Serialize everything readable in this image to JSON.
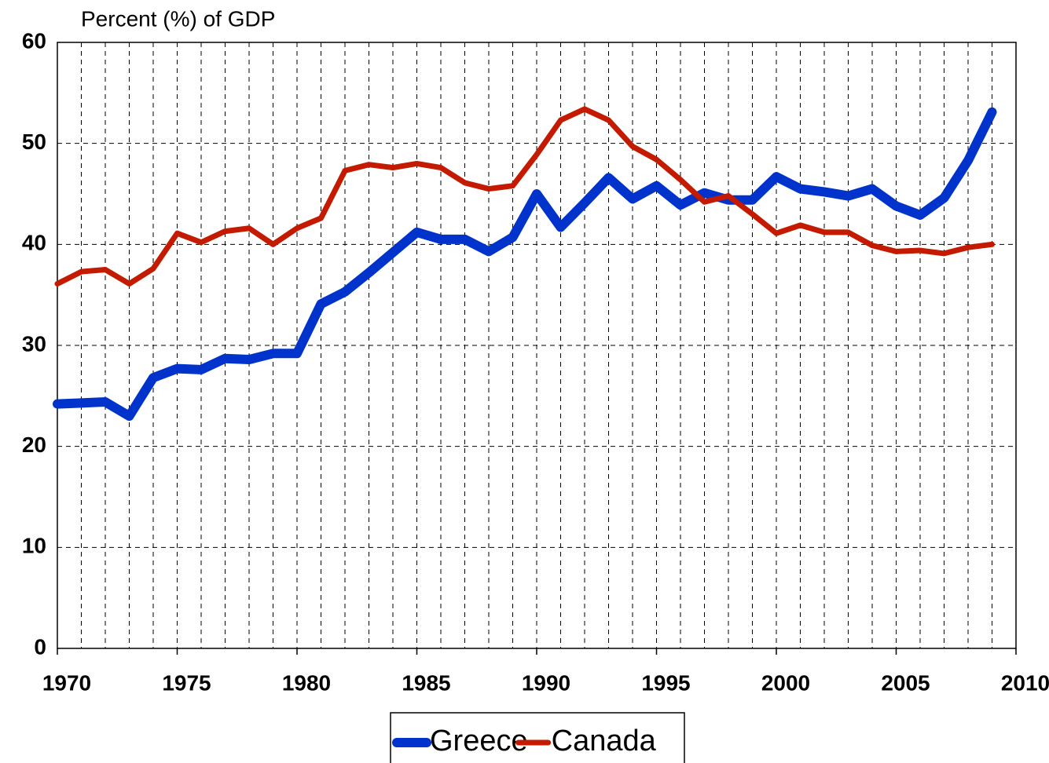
{
  "chart_data": {
    "type": "line",
    "y_label": "Percent (%) of GDP",
    "x": [
      1970,
      1971,
      1972,
      1973,
      1974,
      1975,
      1976,
      1977,
      1978,
      1979,
      1980,
      1981,
      1982,
      1983,
      1984,
      1985,
      1986,
      1987,
      1988,
      1989,
      1990,
      1991,
      1992,
      1993,
      1994,
      1995,
      1996,
      1997,
      1998,
      1999,
      2000,
      2001,
      2002,
      2003,
      2004,
      2005,
      2006,
      2007,
      2008,
      2009
    ],
    "series": [
      {
        "name": "Greece",
        "color": "#0033cc",
        "values": [
          24.2,
          24.3,
          24.4,
          23.0,
          26.8,
          27.7,
          27.6,
          28.7,
          28.6,
          29.2,
          29.2,
          34.1,
          35.3,
          37.2,
          39.2,
          41.2,
          40.5,
          40.5,
          39.3,
          40.7,
          45.0,
          41.7,
          44.1,
          46.6,
          44.5,
          45.8,
          43.9,
          45.1,
          44.4,
          44.4,
          46.7,
          45.5,
          45.2,
          44.8,
          45.5,
          43.8,
          42.9,
          44.6,
          48.3,
          53.1
        ]
      },
      {
        "name": "Canada",
        "color": "#c41a00",
        "values": [
          36.1,
          37.3,
          37.5,
          36.1,
          37.6,
          41.1,
          40.2,
          41.3,
          41.6,
          40.0,
          41.6,
          42.6,
          47.3,
          47.9,
          47.6,
          48.0,
          47.6,
          46.1,
          45.5,
          45.8,
          48.9,
          52.3,
          53.4,
          52.3,
          49.7,
          48.4,
          46.4,
          44.2,
          44.8,
          43.0,
          41.1,
          41.9,
          41.2,
          41.2,
          39.9,
          39.3,
          39.4,
          39.1,
          39.7,
          40.0
        ]
      }
    ],
    "xlim": [
      1970,
      2010
    ],
    "xticks": [
      1970,
      1975,
      1980,
      1985,
      1990,
      1995,
      2000,
      2005,
      2010
    ],
    "ylim": [
      0,
      60
    ],
    "yticks": [
      0,
      10,
      20,
      30,
      40,
      50,
      60
    ],
    "grid": true
  }
}
